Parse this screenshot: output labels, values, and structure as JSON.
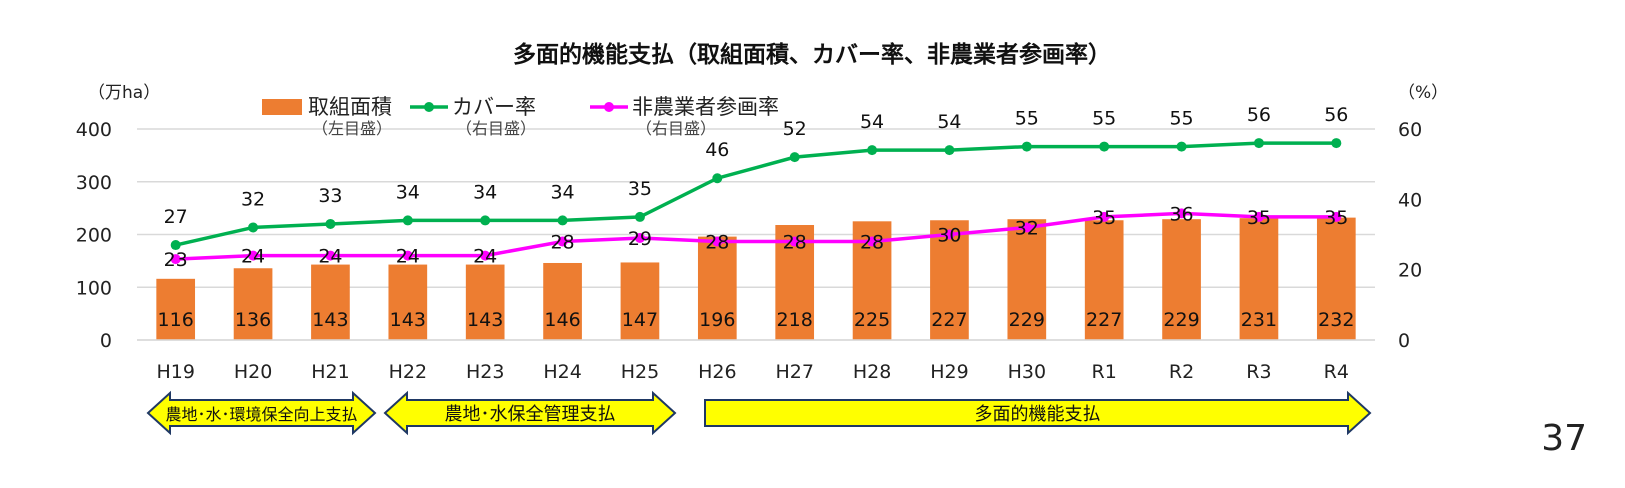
{
  "page_number": "37",
  "chart_data": {
    "type": "bar+line",
    "title": "多面的機能支払（取組面積、カバー率、非農業者参画率）",
    "left_unit": "（万ha）",
    "right_unit": "（%）",
    "categories": [
      "H19",
      "H20",
      "H21",
      "H22",
      "H23",
      "H24",
      "H25",
      "H26",
      "H27",
      "H28",
      "H29",
      "H30",
      "R1",
      "R2",
      "R3",
      "R4"
    ],
    "left_axis": {
      "range": [
        0,
        400
      ],
      "ticks": [
        0,
        100,
        200,
        300,
        400
      ]
    },
    "right_axis": {
      "range": [
        0,
        60
      ],
      "ticks": [
        0,
        20,
        40,
        60
      ]
    },
    "grid": true,
    "legend_placement": "top",
    "series": [
      {
        "name": "取組面積",
        "note": "（左目盛）",
        "type": "bar",
        "axis": "left",
        "color": "#ED7D31",
        "values": [
          116,
          136,
          143,
          143,
          143,
          146,
          147,
          196,
          218,
          225,
          227,
          229,
          227,
          229,
          231,
          232
        ]
      },
      {
        "name": "カバー率",
        "note": "（右目盛）",
        "type": "line",
        "axis": "right",
        "color": "#00B050",
        "values": [
          27,
          32,
          33,
          34,
          34,
          34,
          35,
          46,
          52,
          54,
          54,
          55,
          55,
          55,
          56,
          56
        ]
      },
      {
        "name": "非農業者参画率",
        "note": "（右目盛）",
        "type": "line",
        "axis": "right",
        "color": "#FF00FF",
        "values": [
          23,
          24,
          24,
          24,
          24,
          28,
          29,
          28,
          28,
          28,
          30,
          32,
          35,
          36,
          35,
          35
        ]
      }
    ],
    "periods": [
      {
        "label": "農地･水･環境保全向上支払",
        "from": "H19",
        "to": "H21",
        "color": "#FFFF00"
      },
      {
        "label": "農地･水保全管理支払",
        "from": "H22",
        "to": "H25",
        "color": "#FFFF00"
      },
      {
        "label": "多面的機能支払",
        "from": "H26",
        "to": "R4",
        "color": "#FFFF00"
      }
    ]
  }
}
